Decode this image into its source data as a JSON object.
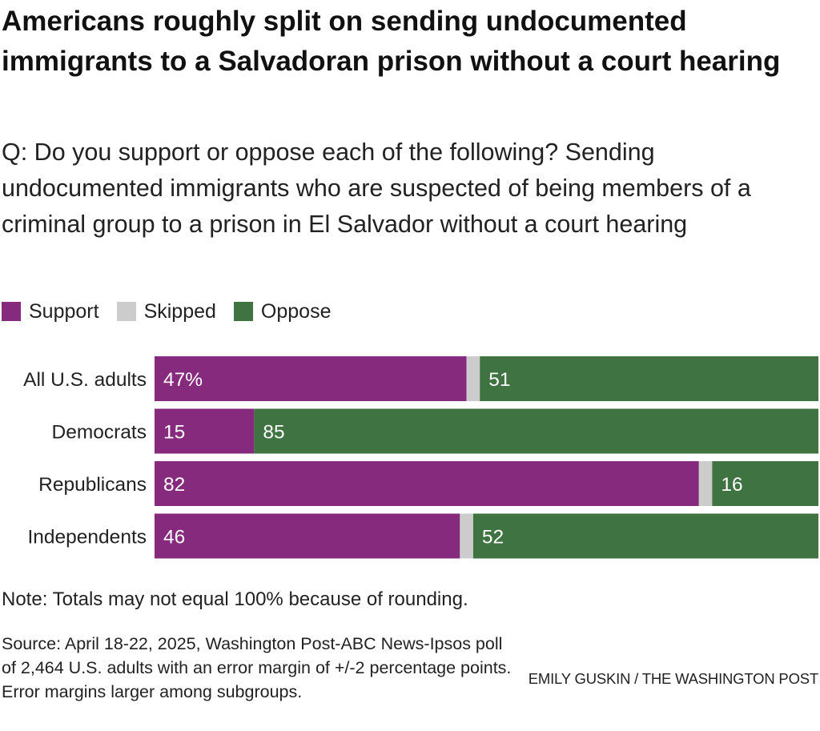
{
  "header": {
    "title": "Americans roughly split on sending undocumented immigrants to a Salvadoran prison without a court hearing",
    "subtitle": "Q: Do you support or oppose each of the following? Sending undocumented immigrants who are suspected of being members of a criminal group to a prison in El Salvador without a court hearing"
  },
  "legend": {
    "items": [
      {
        "label": "Support",
        "color": "#862a7d"
      },
      {
        "label": "Skipped",
        "color": "#cccccc"
      },
      {
        "label": "Oppose",
        "color": "#3f7342"
      }
    ]
  },
  "chart_data": {
    "type": "bar",
    "orientation": "horizontal",
    "stacked": true,
    "categories": [
      "All U.S. adults",
      "Democrats",
      "Republicans",
      "Independents"
    ],
    "series": [
      {
        "name": "Support",
        "color": "#862a7d",
        "values": [
          47,
          15,
          82,
          46
        ],
        "labels": [
          "47%",
          "15",
          "82",
          "46"
        ]
      },
      {
        "name": "Skipped",
        "color": "#cccccc",
        "values": [
          2,
          0,
          2,
          2
        ],
        "labels": [
          "",
          "",
          "",
          ""
        ]
      },
      {
        "name": "Oppose",
        "color": "#3f7342",
        "values": [
          51,
          85,
          16,
          52
        ],
        "labels": [
          "51",
          "85",
          "16",
          "52"
        ]
      }
    ],
    "xlim": [
      0,
      100
    ],
    "grid": false,
    "legend_position": "top-left"
  },
  "footer": {
    "note": "Note: Totals may not equal 100% because of rounding.",
    "source": "Source: April 18-22, 2025, Washington Post-ABC News-Ipsos poll of 2,464 U.S. adults with an error margin of +/-2 percentage points. Error margins larger among subgroups.",
    "credit": "EMILY GUSKIN / THE WASHINGTON POST"
  }
}
